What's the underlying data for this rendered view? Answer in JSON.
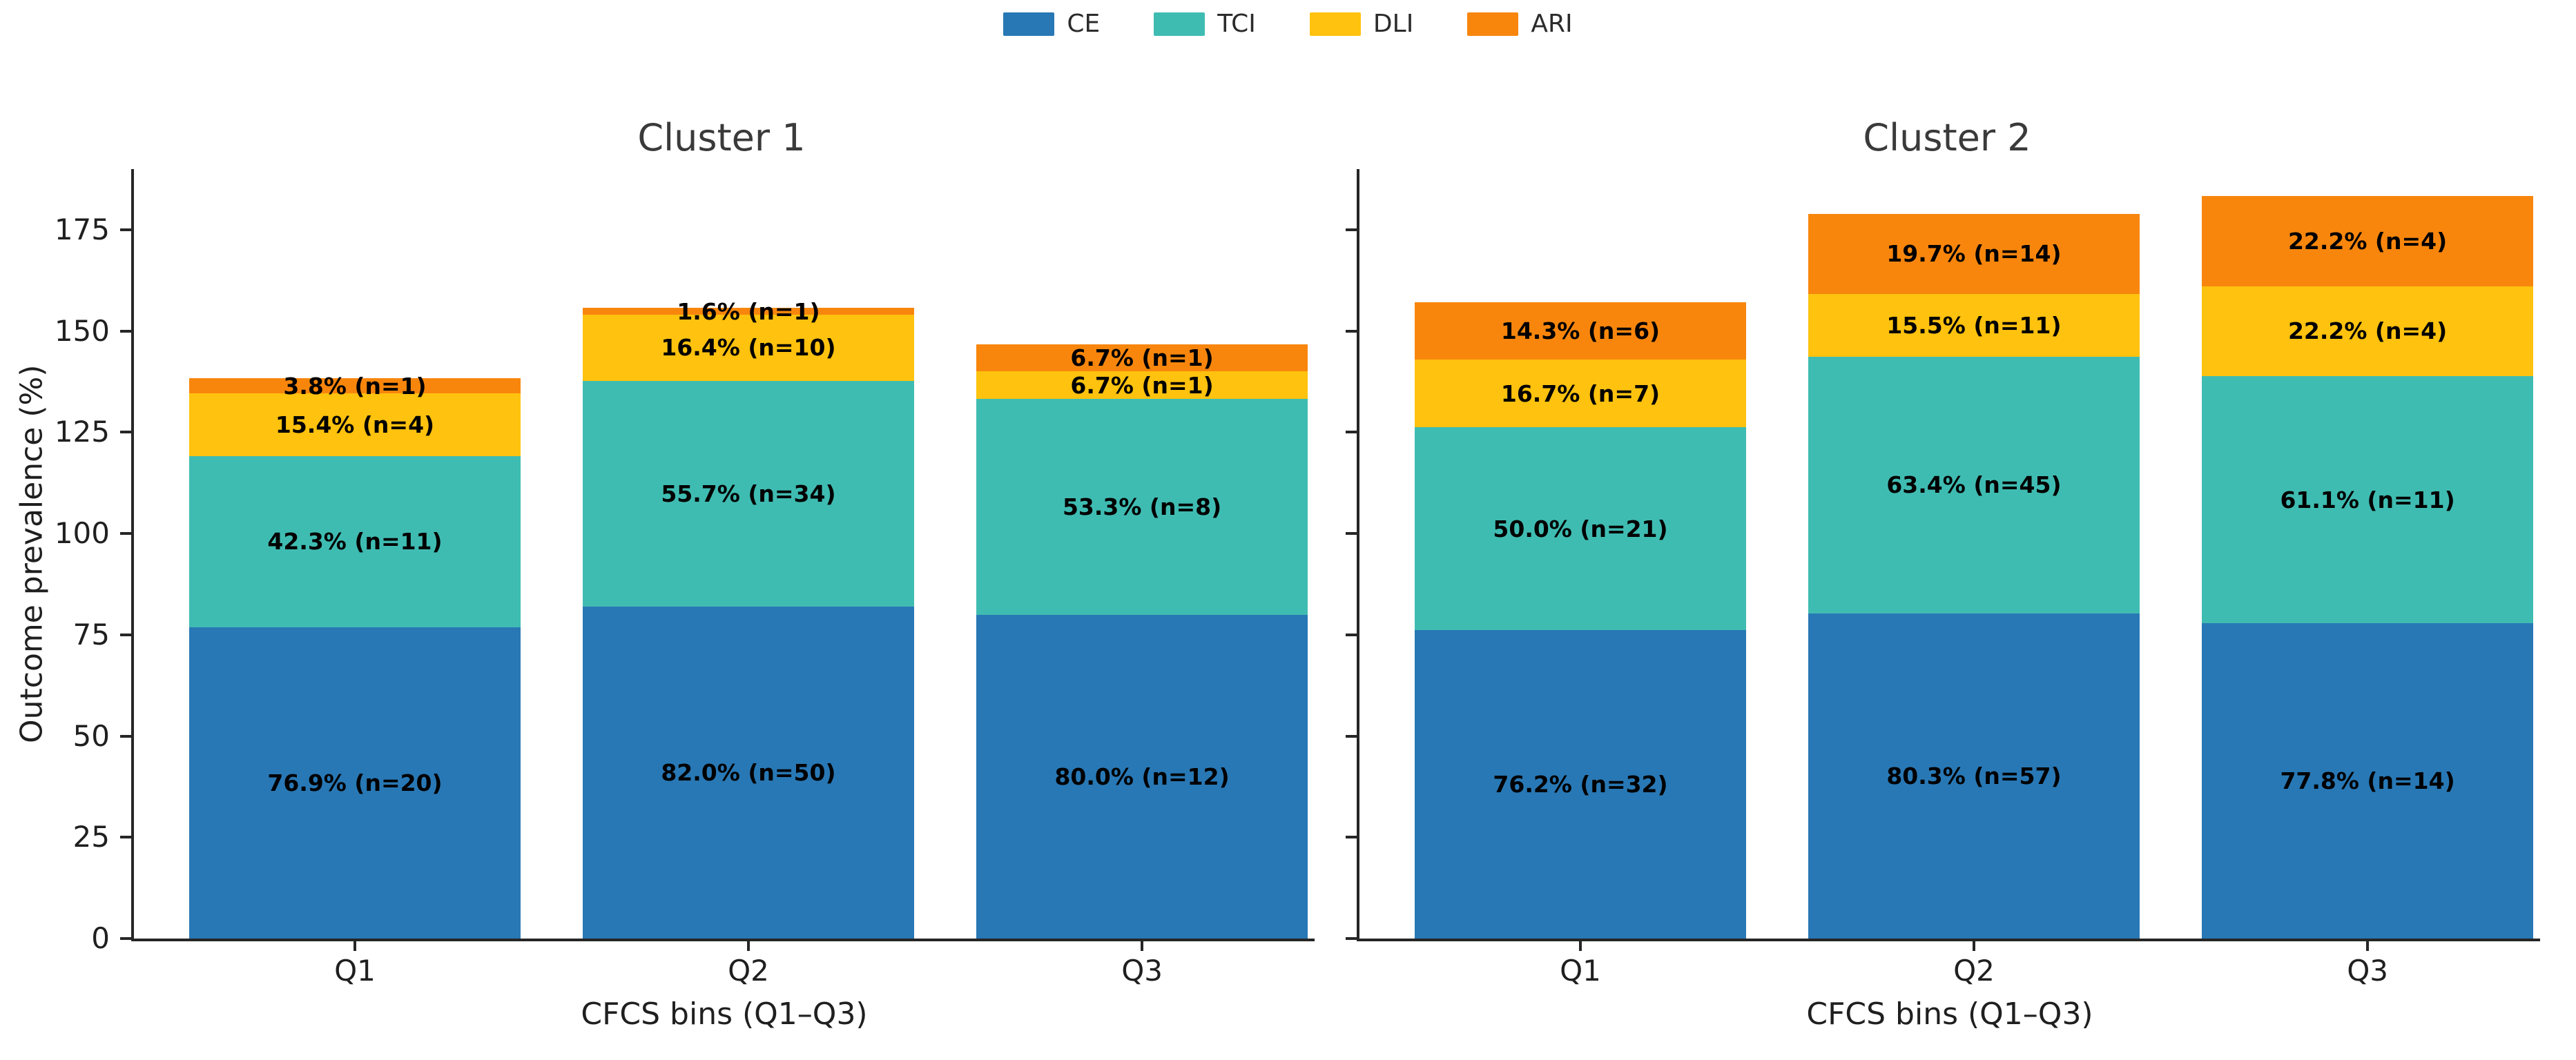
{
  "legend": {
    "items": [
      {
        "label": "CE",
        "color": "#2878b5"
      },
      {
        "label": "TCI",
        "color": "#3fbcb2"
      },
      {
        "label": "DLI",
        "color": "#ffc20e"
      },
      {
        "label": "ARI",
        "color": "#f8860d"
      }
    ]
  },
  "chart_data": [
    {
      "type": "bar",
      "stacked": true,
      "title": "Cluster 1",
      "xlabel": "CFCS bins (Q1–Q3)",
      "ylabel": "Outcome prevalence (%)",
      "ylim": [
        0,
        190
      ],
      "yticks": [
        0,
        25,
        50,
        75,
        100,
        125,
        150,
        175
      ],
      "categories": [
        "Q1",
        "Q2",
        "Q3"
      ],
      "series": [
        {
          "name": "CE",
          "color": "#2878b5",
          "values": [
            76.9,
            82.0,
            80.0
          ],
          "n": [
            20,
            50,
            12
          ]
        },
        {
          "name": "TCI",
          "color": "#3fbcb2",
          "values": [
            42.3,
            55.7,
            53.3
          ],
          "n": [
            11,
            34,
            8
          ]
        },
        {
          "name": "DLI",
          "color": "#ffc20e",
          "values": [
            15.4,
            16.4,
            6.7
          ],
          "n": [
            4,
            10,
            1
          ]
        },
        {
          "name": "ARI",
          "color": "#f8860d",
          "values": [
            3.8,
            1.6,
            6.7
          ],
          "n": [
            1,
            1,
            1
          ]
        }
      ],
      "bar_labels": [
        [
          "76.9% (n=20)",
          "82.0% (n=50)",
          "80.0% (n=12)"
        ],
        [
          "42.3% (n=11)",
          "55.7% (n=34)",
          "53.3% (n=8)"
        ],
        [
          "15.4% (n=4)",
          "16.4% (n=10)",
          "6.7% (n=1)"
        ],
        [
          "3.8% (n=1)",
          "1.6% (n=1)",
          "6.7% (n=1)"
        ]
      ],
      "show_ytick_labels": true,
      "legend_position": "top-center-of-figure",
      "grid": false
    },
    {
      "type": "bar",
      "stacked": true,
      "title": "Cluster 2",
      "xlabel": "CFCS bins (Q1–Q3)",
      "ylabel": "",
      "ylim": [
        0,
        190
      ],
      "yticks": [
        0,
        25,
        50,
        75,
        100,
        125,
        150,
        175
      ],
      "categories": [
        "Q1",
        "Q2",
        "Q3"
      ],
      "series": [
        {
          "name": "CE",
          "color": "#2878b5",
          "values": [
            76.2,
            80.3,
            77.8
          ],
          "n": [
            32,
            57,
            14
          ]
        },
        {
          "name": "TCI",
          "color": "#3fbcb2",
          "values": [
            50.0,
            63.4,
            61.1
          ],
          "n": [
            21,
            45,
            11
          ]
        },
        {
          "name": "DLI",
          "color": "#ffc20e",
          "values": [
            16.7,
            15.5,
            22.2
          ],
          "n": [
            7,
            11,
            4
          ]
        },
        {
          "name": "ARI",
          "color": "#f8860d",
          "values": [
            14.3,
            19.7,
            22.2
          ],
          "n": [
            6,
            14,
            4
          ]
        }
      ],
      "bar_labels": [
        [
          "76.2% (n=32)",
          "80.3% (n=57)",
          "77.8% (n=14)"
        ],
        [
          "50.0% (n=21)",
          "63.4% (n=45)",
          "61.1% (n=11)"
        ],
        [
          "16.7% (n=7)",
          "15.5% (n=11)",
          "22.2% (n=4)"
        ],
        [
          "14.3% (n=6)",
          "19.7% (n=14)",
          "22.2% (n=4)"
        ]
      ],
      "show_ytick_labels": false,
      "grid": false
    }
  ]
}
